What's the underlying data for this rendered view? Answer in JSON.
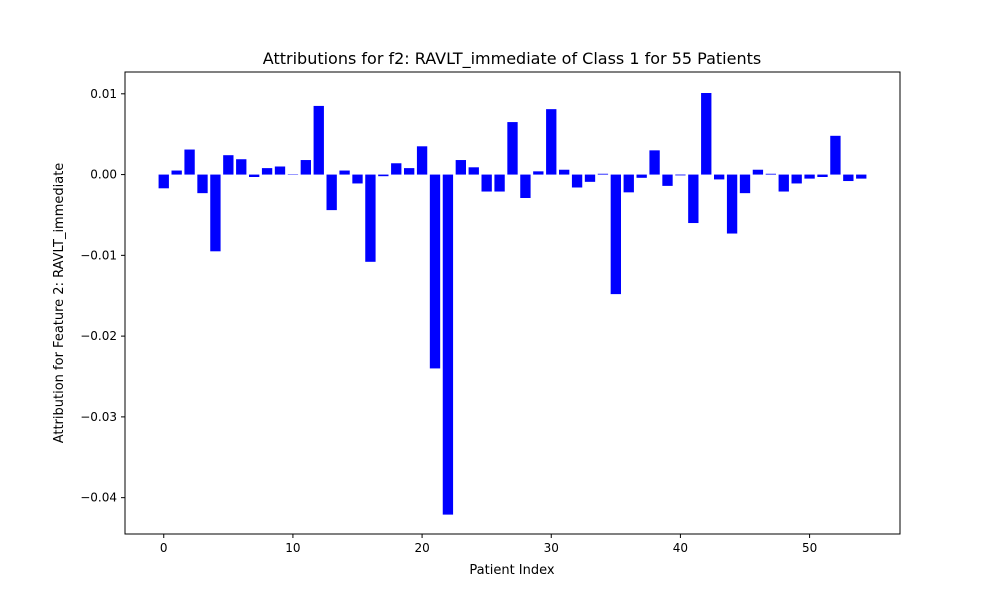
{
  "chart_data": {
    "type": "bar",
    "title": "Attributions for f2: RAVLT_immediate of Class 1 for 55 Patients",
    "xlabel": "Patient Index",
    "ylabel": "Attribution for Feature 2: RAVLT_immediate",
    "xlim": [
      -3,
      57
    ],
    "ylim": [
      -0.0445,
      0.0127
    ],
    "xticks": [
      0,
      10,
      20,
      30,
      40,
      50
    ],
    "xtick_labels": [
      "0",
      "10",
      "20",
      "30",
      "40",
      "50"
    ],
    "yticks": [
      0.01,
      0.0,
      -0.01,
      -0.02,
      -0.03,
      -0.04
    ],
    "ytick_labels": [
      "0.01",
      "0.00",
      "−0.01",
      "−0.02",
      "−0.03",
      "−0.04"
    ],
    "bar_color": "#0000ff",
    "grid": false,
    "x": [
      0,
      1,
      2,
      3,
      4,
      5,
      6,
      7,
      8,
      9,
      10,
      11,
      12,
      13,
      14,
      15,
      16,
      17,
      18,
      19,
      20,
      21,
      22,
      23,
      24,
      25,
      26,
      27,
      28,
      29,
      30,
      31,
      32,
      33,
      34,
      35,
      36,
      37,
      38,
      39,
      40,
      41,
      42,
      43,
      44,
      45,
      46,
      47,
      48,
      49,
      50,
      51,
      52,
      53,
      54
    ],
    "values": [
      -0.0017,
      0.0005,
      0.0031,
      -0.0023,
      -0.0095,
      0.0024,
      0.0019,
      -0.0003,
      0.0008,
      0.001,
      0.0,
      0.0018,
      0.0085,
      -0.0044,
      0.0005,
      -0.0011,
      -0.0108,
      -0.0002,
      0.0014,
      0.0008,
      0.0035,
      -0.024,
      -0.0421,
      0.0018,
      0.0009,
      -0.0021,
      -0.0021,
      0.0065,
      -0.0029,
      0.0004,
      0.0081,
      0.0006,
      -0.0016,
      -0.0009,
      0.0001,
      -0.0148,
      -0.0022,
      -0.0004,
      0.003,
      -0.0014,
      -0.0001,
      -0.006,
      0.0101,
      -0.0006,
      -0.0073,
      -0.0023,
      0.0006,
      0.0001,
      -0.0021,
      -0.0011,
      -0.0005,
      -0.0003,
      0.0048,
      -0.0008,
      -0.0005
    ]
  }
}
